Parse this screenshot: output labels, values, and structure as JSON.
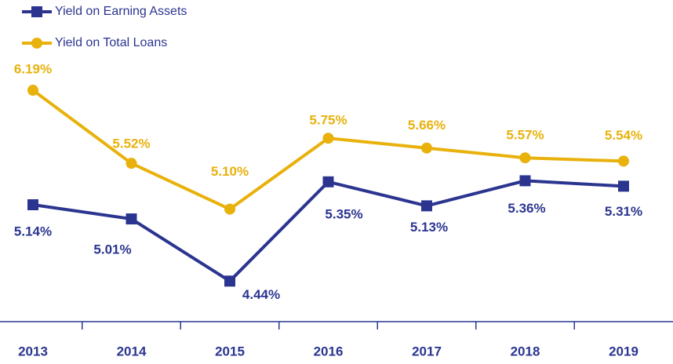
{
  "chart_data": {
    "type": "line",
    "categories": [
      "2013",
      "2014",
      "2015",
      "2016",
      "2017",
      "2018",
      "2019"
    ],
    "series": [
      {
        "name": "Yield on Earning Assets",
        "color": "#2b3590",
        "values": [
          5.14,
          5.01,
          4.44,
          5.35,
          5.13,
          5.36,
          5.31
        ],
        "value_labels": [
          "5.14%",
          "5.01%",
          "4.44%",
          "5.35%",
          "5.13%",
          "5.36%",
          "5.31%"
        ]
      },
      {
        "name": "Yield on Total Loans",
        "color": "#e8b10c",
        "values": [
          6.19,
          5.52,
          5.1,
          5.75,
          5.66,
          5.57,
          5.54
        ],
        "value_labels": [
          "6.19%",
          "5.52%",
          "5.10%",
          "5.75%",
          "5.66%",
          "5.57%",
          "5.54%"
        ]
      }
    ],
    "ylim": [
      4,
      7
    ],
    "legend": "top-left"
  }
}
